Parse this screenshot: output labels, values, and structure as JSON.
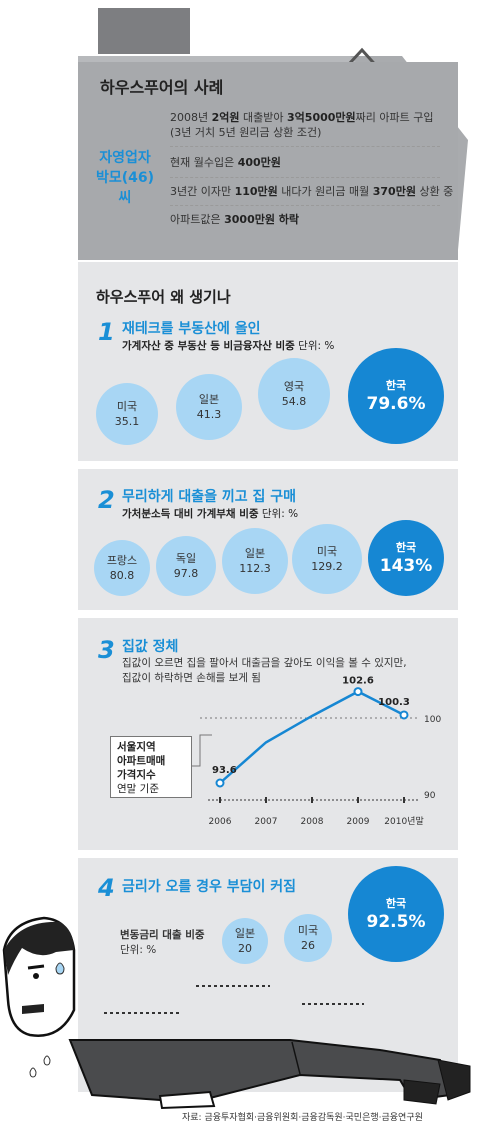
{
  "case": {
    "title": "하우스푸어의 사례",
    "person_line1": "자영업자",
    "person_line2": "박모(46)씨",
    "line1_parts": [
      "2008년 ",
      "2억원",
      " 대출받아 ",
      "3억5000만원",
      "짜리 아파트 구입"
    ],
    "line1b": "(3년 거치 5년 원리금 상환 조건)",
    "line2_parts": [
      "현재 월수입은 ",
      "400만원"
    ],
    "line3_parts": [
      "3년간 이자만 ",
      "110만원",
      " 내다가 원리금 매월 ",
      "370만원",
      " 상환 중"
    ],
    "line4_parts": [
      "아파트값은 ",
      "3000만원 하락"
    ]
  },
  "main_title": "하우스푸어 왜 생기나",
  "s1": {
    "num": "1",
    "title": "재테크를 부동산에 올인",
    "subtitle_bold": "가계자산 중 부동산 등 비금융자산 비중",
    "unit": " 단위: %",
    "items": [
      {
        "label": "미국",
        "value": "35.1"
      },
      {
        "label": "일본",
        "value": "41.3"
      },
      {
        "label": "영국",
        "value": "54.8"
      },
      {
        "label": "한국",
        "value": "79.6%"
      }
    ]
  },
  "s2": {
    "num": "2",
    "title": "무리하게 대출을 끼고 집 구매",
    "subtitle_bold": "가처분소득 대비 가계부채 비중",
    "unit": " 단위: %",
    "items": [
      {
        "label": "프랑스",
        "value": "80.8"
      },
      {
        "label": "독일",
        "value": "97.8"
      },
      {
        "label": "일본",
        "value": "112.3"
      },
      {
        "label": "미국",
        "value": "129.2"
      },
      {
        "label": "한국",
        "value": "143%"
      }
    ]
  },
  "s3": {
    "num": "3",
    "title": "집값 정체",
    "desc1": "집값이 오르면 집을 팔아서 대출금을 갚아도 이익을 볼 수 있지만,",
    "desc2": "집값이 하락하면 손해를 보게 됨",
    "legend": [
      "서울지역",
      "아파트매매",
      "가격지수",
      "연말 기준"
    ]
  },
  "chart_data": {
    "type": "line",
    "x": [
      "2006",
      "2007",
      "2008",
      "2009",
      "2010년말"
    ],
    "series": [
      {
        "values": [
          93.6,
          null,
          null,
          102.6,
          100.3
        ]
      }
    ],
    "data_labels": [
      "93.6",
      "102.6",
      "100.3"
    ],
    "y_ticks": [
      "100",
      "90"
    ],
    "ylim": [
      90,
      104
    ],
    "grid": "dotted line at 100"
  },
  "s4": {
    "num": "4",
    "title": "금리가 오를 경우 부담이 커짐",
    "label1": "변동금리 대출 비중",
    "label2": "단위: %",
    "items": [
      {
        "label": "일본",
        "value": "20"
      },
      {
        "label": "미국",
        "value": "26"
      },
      {
        "label": "한국",
        "value": "92.5%"
      }
    ]
  },
  "source": "자료: 금융투자협회·금융위원회·금융감독원·국민은행·금융연구원"
}
